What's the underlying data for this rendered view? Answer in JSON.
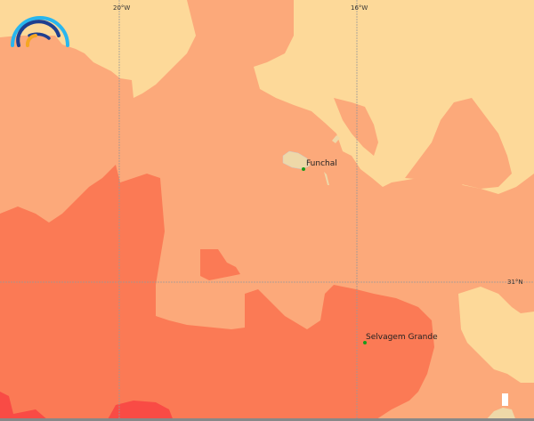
{
  "map": {
    "graticule": {
      "lon_labels": [
        "20°W",
        "16°W"
      ],
      "lat_labels": [
        "31°N"
      ]
    },
    "places": [
      {
        "name": "Funchal"
      },
      {
        "name": "Selvagem Grande"
      }
    ],
    "colors": {
      "low": "#fdd999",
      "mid": "#fca97a",
      "high": "#fb7a55",
      "very_high": "#f94b45",
      "land": "#eed8a8",
      "graticule": "#999999",
      "place_marker": "#1a9a1a"
    },
    "logo": {
      "icon": "rainbow-arcs-logo-icon"
    }
  }
}
